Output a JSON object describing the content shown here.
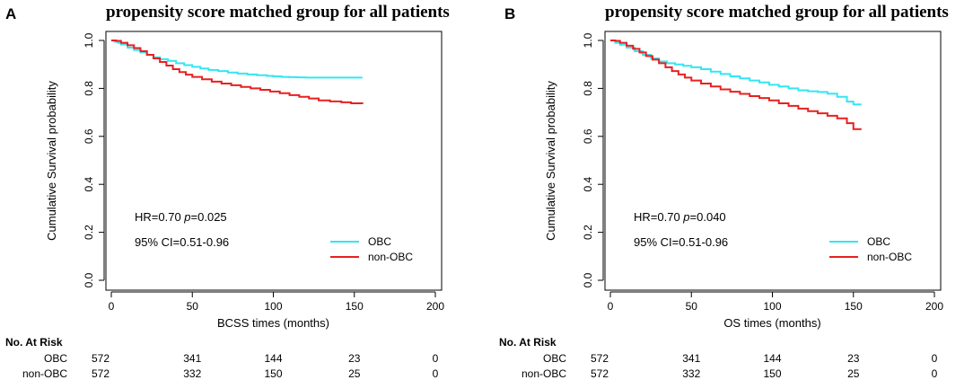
{
  "chart_data": [
    {
      "type": "line",
      "panel": "A",
      "title": "propensity score matched group for all patients",
      "xlabel": "BCSS times (months)",
      "ylabel": "Cumulative Survival probability",
      "xlim": [
        0,
        200
      ],
      "ylim": [
        0.0,
        1.0
      ],
      "xticks": [
        "0",
        "50",
        "100",
        "150",
        "200"
      ],
      "yticks": [
        "0.0",
        "0.2",
        "0.4",
        "0.6",
        "0.8",
        "1.0"
      ],
      "hr_text": "HR=0.70 ",
      "p_label": "p",
      "p_value": "=0.025",
      "ci_text": "95% CI=0.51-0.96",
      "series": [
        {
          "name": "OBC",
          "color": "#33e6f2",
          "x": [
            0,
            2,
            4,
            6,
            10,
            14,
            18,
            22,
            26,
            30,
            35,
            40,
            45,
            50,
            55,
            60,
            66,
            72,
            78,
            84,
            90,
            96,
            100,
            105,
            110,
            115,
            120,
            130,
            140,
            150,
            155
          ],
          "y": [
            1.0,
            0.995,
            0.99,
            0.983,
            0.97,
            0.96,
            0.95,
            0.94,
            0.93,
            0.922,
            0.915,
            0.905,
            0.897,
            0.89,
            0.883,
            0.877,
            0.872,
            0.866,
            0.862,
            0.858,
            0.855,
            0.852,
            0.85,
            0.848,
            0.847,
            0.846,
            0.845,
            0.845,
            0.845,
            0.845,
            0.845
          ]
        },
        {
          "name": "non-OBC",
          "color": "#e82020",
          "x": [
            0,
            3,
            6,
            10,
            14,
            18,
            22,
            26,
            30,
            34,
            38,
            42,
            46,
            50,
            56,
            62,
            68,
            74,
            80,
            86,
            92,
            98,
            104,
            110,
            116,
            122,
            128,
            135,
            142,
            148,
            155
          ],
          "y": [
            1.0,
            0.998,
            0.99,
            0.98,
            0.968,
            0.955,
            0.94,
            0.925,
            0.91,
            0.895,
            0.88,
            0.868,
            0.857,
            0.848,
            0.838,
            0.828,
            0.82,
            0.813,
            0.806,
            0.8,
            0.794,
            0.787,
            0.78,
            0.772,
            0.765,
            0.758,
            0.75,
            0.746,
            0.742,
            0.738,
            0.735
          ]
        }
      ],
      "risk_table": {
        "heading": "No. At Risk",
        "times": [
          0,
          50,
          100,
          150,
          200
        ],
        "rows": [
          {
            "label": "OBC",
            "values": [
              "572",
              "341",
              "144",
              "23",
              "0"
            ]
          },
          {
            "label": "non-OBC",
            "values": [
              "572",
              "332",
              "150",
              "25",
              "0"
            ]
          }
        ]
      }
    },
    {
      "type": "line",
      "panel": "B",
      "title": "propensity score matched group for all patients",
      "xlabel": "OS times (months)",
      "ylabel": "Cumulative Survival probability",
      "xlim": [
        0,
        200
      ],
      "ylim": [
        0.0,
        1.0
      ],
      "xticks": [
        "0",
        "50",
        "100",
        "150",
        "200"
      ],
      "yticks": [
        "0.0",
        "0.2",
        "0.4",
        "0.6",
        "0.8",
        "1.0"
      ],
      "hr_text": "HR=0.70 ",
      "p_label": "p",
      "p_value": "=0.040",
      "ci_text": "95% CI=0.51-0.96",
      "series": [
        {
          "name": "OBC",
          "color": "#33e6f2",
          "x": [
            0,
            3,
            6,
            10,
            15,
            20,
            25,
            30,
            35,
            40,
            45,
            50,
            56,
            62,
            68,
            74,
            80,
            86,
            92,
            98,
            104,
            110,
            116,
            122,
            128,
            134,
            140,
            146,
            150,
            155
          ],
          "y": [
            1.0,
            0.99,
            0.982,
            0.97,
            0.955,
            0.94,
            0.925,
            0.912,
            0.905,
            0.9,
            0.894,
            0.888,
            0.88,
            0.87,
            0.86,
            0.85,
            0.842,
            0.833,
            0.825,
            0.815,
            0.808,
            0.8,
            0.792,
            0.788,
            0.785,
            0.778,
            0.765,
            0.745,
            0.733,
            0.733
          ]
        },
        {
          "name": "non-OBC",
          "color": "#e82020",
          "x": [
            0,
            3,
            6,
            10,
            14,
            18,
            22,
            26,
            30,
            34,
            38,
            42,
            46,
            50,
            56,
            62,
            68,
            74,
            80,
            86,
            92,
            98,
            104,
            110,
            116,
            122,
            128,
            134,
            140,
            146,
            150,
            155
          ],
          "y": [
            1.0,
            0.998,
            0.99,
            0.978,
            0.965,
            0.95,
            0.935,
            0.92,
            0.905,
            0.888,
            0.872,
            0.858,
            0.845,
            0.833,
            0.82,
            0.808,
            0.796,
            0.786,
            0.777,
            0.768,
            0.76,
            0.75,
            0.738,
            0.727,
            0.716,
            0.705,
            0.696,
            0.686,
            0.675,
            0.655,
            0.63,
            0.63
          ]
        }
      ],
      "risk_table": {
        "heading": "No. At Risk",
        "times": [
          0,
          50,
          100,
          150,
          200
        ],
        "rows": [
          {
            "label": "OBC",
            "values": [
              "572",
              "341",
              "144",
              "23",
              "0"
            ]
          },
          {
            "label": "non-OBC",
            "values": [
              "572",
              "332",
              "150",
              "25",
              "0"
            ]
          }
        ]
      }
    }
  ]
}
